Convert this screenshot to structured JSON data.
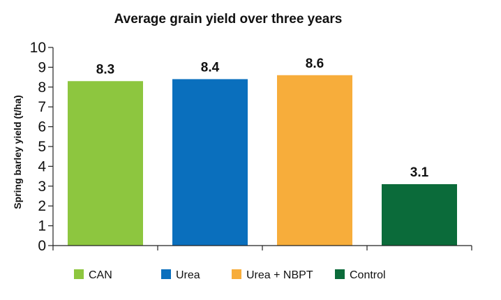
{
  "chart_data": {
    "type": "bar",
    "title": "Average grain yield over three years",
    "xlabel": "",
    "ylabel": "Spring barley yield (t/ha)",
    "ylim": [
      0,
      10
    ],
    "yticks": [
      0,
      1,
      2,
      3,
      4,
      5,
      6,
      7,
      8,
      9,
      10
    ],
    "grid": false,
    "legend_position": "bottom",
    "categories": [
      "CAN",
      "Urea",
      "Urea + NBPT",
      "Control"
    ],
    "values": [
      8.3,
      8.4,
      8.6,
      3.1
    ],
    "data_labels": [
      "8.3",
      "8.4",
      "8.6",
      "3.1"
    ],
    "colors": [
      "#8dc63f",
      "#0a6fbd",
      "#f7ad3b",
      "#0b6b3a"
    ]
  }
}
